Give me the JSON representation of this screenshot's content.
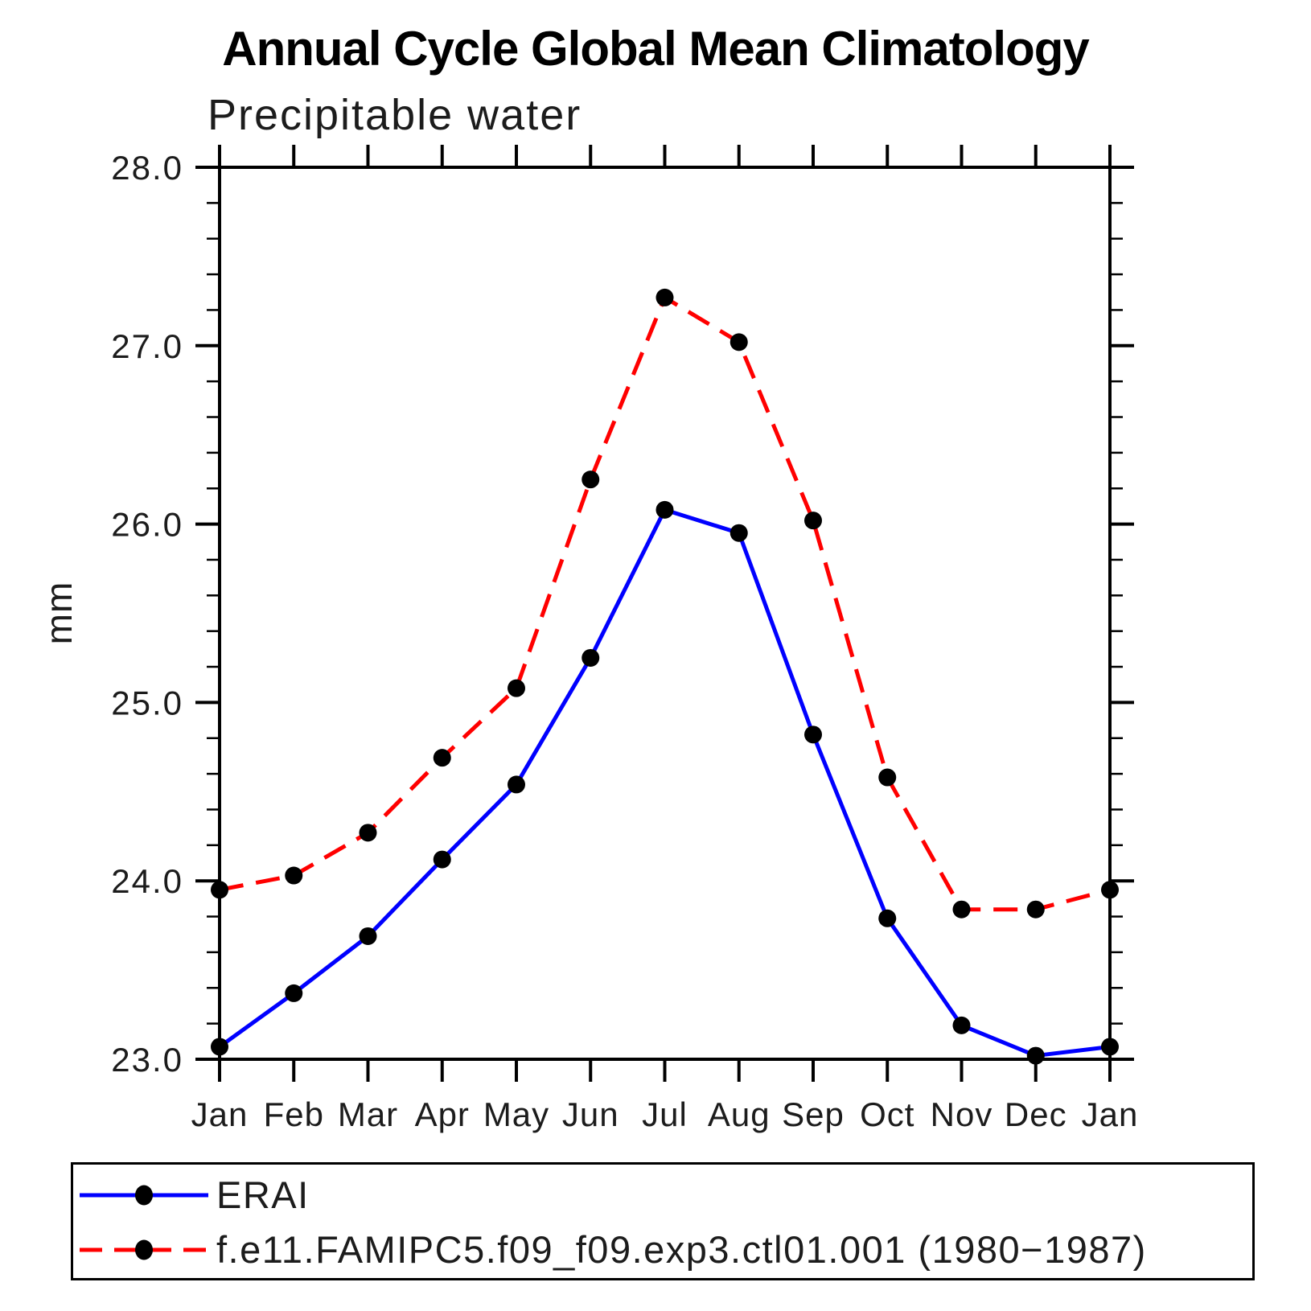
{
  "chart_data": {
    "type": "line",
    "title": "Annual Cycle Global Mean Climatology",
    "subtitle": "Precipitable water",
    "ylabel": "mm",
    "categories": [
      "Jan",
      "Feb",
      "Mar",
      "Apr",
      "May",
      "Jun",
      "Jul",
      "Aug",
      "Sep",
      "Oct",
      "Nov",
      "Dec",
      "Jan"
    ],
    "ylim": [
      23.0,
      28.0
    ],
    "ytick_interval_major": 1.0,
    "ytick_interval_minor": 0.2,
    "ytick_labels": [
      "23.0",
      "24.0",
      "25.0",
      "26.0",
      "27.0",
      "28.0"
    ],
    "grid": false,
    "legend_position": "bottom",
    "marker": {
      "shape": "filled-circle",
      "color": "#000000"
    },
    "series": [
      {
        "name": "ERAI",
        "color": "#0000ff",
        "line_style": "solid",
        "values": [
          23.07,
          23.37,
          23.69,
          24.12,
          24.54,
          25.25,
          26.08,
          25.95,
          24.82,
          23.79,
          23.19,
          23.02,
          23.07
        ]
      },
      {
        "name": "f.e11.FAMIPC5.f09_f09.exp3.ctl01.001 (1980−1987)",
        "color": "#ff0000",
        "line_style": "dashed",
        "values": [
          23.95,
          24.03,
          24.27,
          24.69,
          25.08,
          26.25,
          27.27,
          27.02,
          26.02,
          24.58,
          23.84,
          23.84,
          23.95
        ]
      }
    ]
  },
  "colors": {
    "axis": "#000000",
    "background": "#ffffff",
    "marker": "#000000",
    "erai": "#0000ff",
    "model": "#ff0000"
  }
}
